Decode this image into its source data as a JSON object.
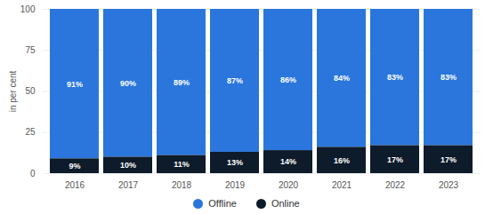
{
  "chart_data": {
    "type": "bar",
    "stacked": true,
    "data_labels": true,
    "grid": true,
    "legend": "bottom",
    "y_label": "in per cent",
    "categories": [
      "2016",
      "2017",
      "2018",
      "2019",
      "2020",
      "2021",
      "2022",
      "2023"
    ],
    "ylim": [
      0,
      100
    ],
    "yticks": [
      0,
      25,
      50,
      75,
      100
    ],
    "series": [
      {
        "name": "Offline",
        "color": "#2a76dd",
        "values": [
          91,
          90,
          89,
          87,
          86,
          84,
          83,
          83
        ],
        "value_labels": [
          "91%",
          "90%",
          "89%",
          "87%",
          "86%",
          "84%",
          "83%",
          "83%"
        ]
      },
      {
        "name": "Online",
        "color": "#0d1b2a",
        "values": [
          9,
          10,
          11,
          13,
          14,
          16,
          17,
          17
        ],
        "value_labels": [
          "9%",
          "10%",
          "11%",
          "13%",
          "14%",
          "16%",
          "17%",
          "17%"
        ]
      }
    ]
  }
}
